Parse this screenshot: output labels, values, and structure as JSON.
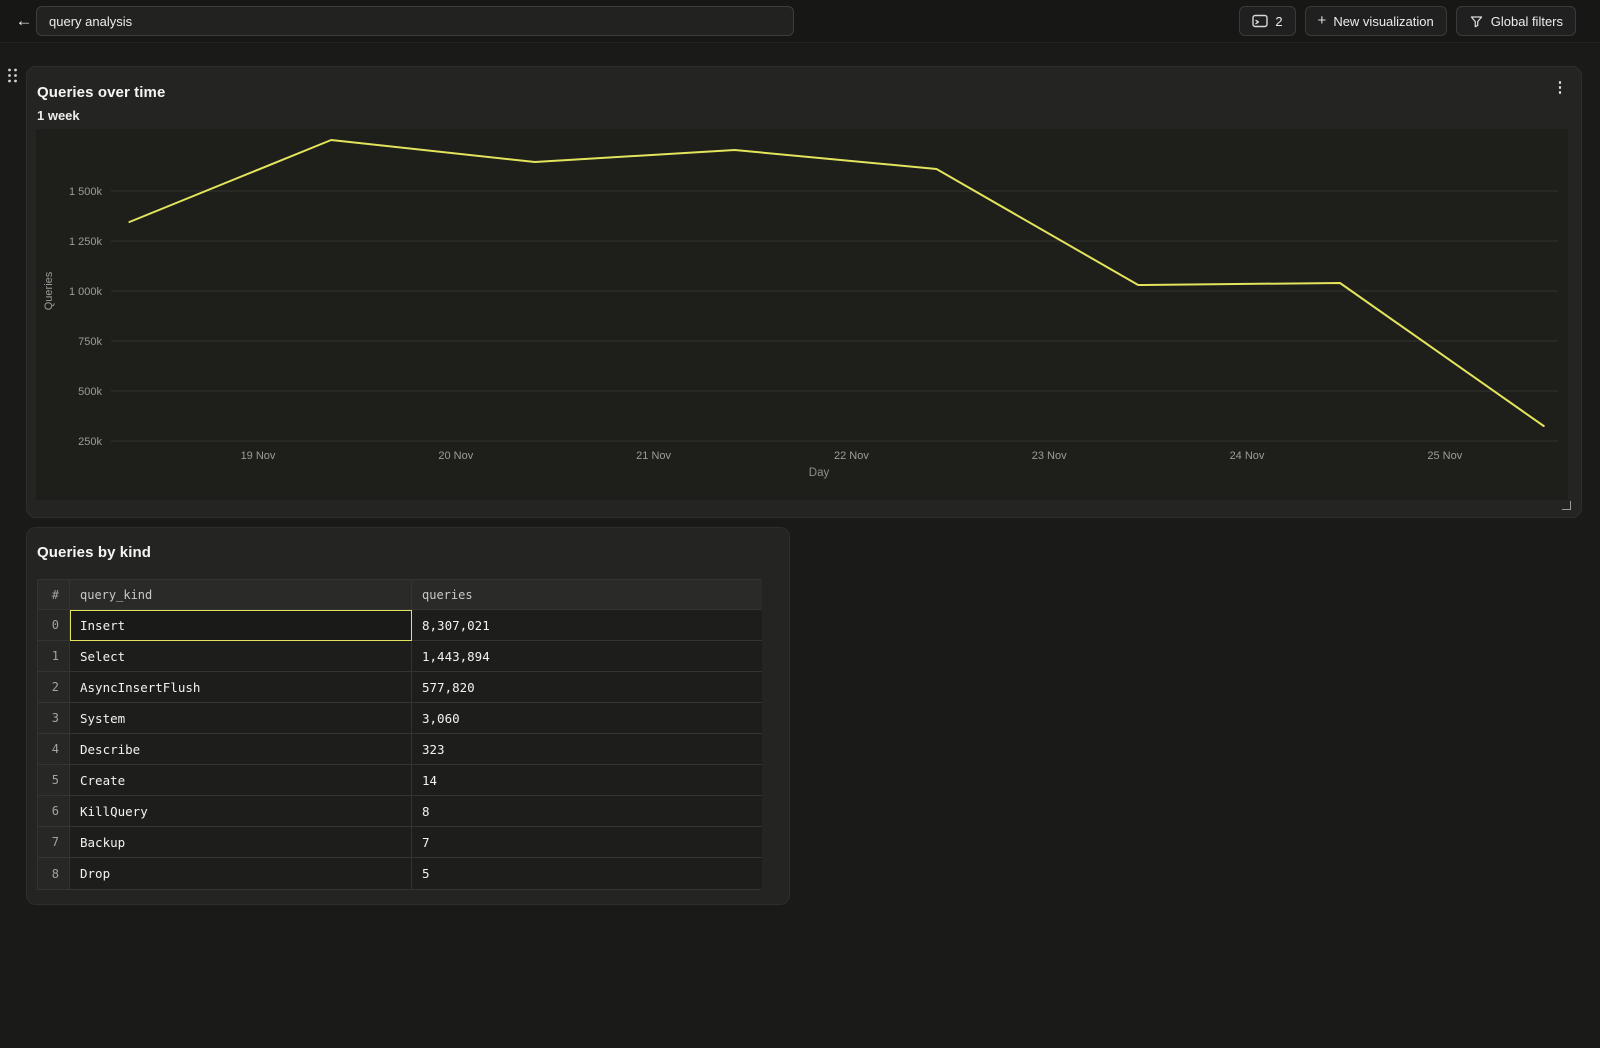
{
  "topbar": {
    "title_value": "query analysis",
    "back_icon": "←",
    "panels_count": "2",
    "panels_icon": "console-window-icon",
    "plus_icon": "+",
    "new_visualization_label": "New visualization",
    "filter_icon": "funnel-icon",
    "global_filters_label": "Global filters"
  },
  "chart_card": {
    "title": "Queries over time",
    "subtitle": "1 week",
    "kebab_icon": "⋮"
  },
  "chart_data": {
    "type": "line",
    "title": "Queries over time",
    "xlabel": "Day",
    "ylabel": "Queries",
    "grid": true,
    "legend": false,
    "line_color": "#e3e45c",
    "ylim": [
      0,
      1810000
    ],
    "y_tick_values": [
      1500000,
      1250000,
      1000000,
      750000,
      500000,
      250000
    ],
    "y_tick_labels": [
      "1 500k",
      "1 250k",
      "1 000k",
      "750k",
      "500k",
      "250k"
    ],
    "x_tick_days": [
      19,
      20,
      21,
      22,
      23,
      24,
      25
    ],
    "x_tick_labels": [
      "19 Nov",
      "20 Nov",
      "21 Nov",
      "22 Nov",
      "23 Nov",
      "24 Nov",
      "25 Nov"
    ],
    "series": [
      {
        "name": "Queries",
        "points": [
          {
            "day": 18.35,
            "value": 1345000
          },
          {
            "day": 19.37,
            "value": 1755000
          },
          {
            "day": 20.4,
            "value": 1645000
          },
          {
            "day": 21.41,
            "value": 1705000
          },
          {
            "day": 22.43,
            "value": 1610000
          },
          {
            "day": 23.45,
            "value": 1030000
          },
          {
            "day": 24.47,
            "value": 1040000
          },
          {
            "day": 25.5,
            "value": 325000
          }
        ]
      }
    ]
  },
  "table_card": {
    "title": "Queries by kind",
    "columns": [
      "#",
      "query_kind",
      "queries"
    ],
    "rows": [
      {
        "index": "0",
        "query_kind": "Insert",
        "queries": "8,307,021",
        "selected": true
      },
      {
        "index": "1",
        "query_kind": "Select",
        "queries": "1,443,894",
        "selected": false
      },
      {
        "index": "2",
        "query_kind": "AsyncInsertFlush",
        "queries": "577,820",
        "selected": false
      },
      {
        "index": "3",
        "query_kind": "System",
        "queries": "3,060",
        "selected": false
      },
      {
        "index": "4",
        "query_kind": "Describe",
        "queries": "323",
        "selected": false
      },
      {
        "index": "5",
        "query_kind": "Create",
        "queries": "14",
        "selected": false
      },
      {
        "index": "6",
        "query_kind": "KillQuery",
        "queries": "8",
        "selected": false
      },
      {
        "index": "7",
        "query_kind": "Backup",
        "queries": "7",
        "selected": false
      },
      {
        "index": "8",
        "query_kind": "Drop",
        "queries": "5",
        "selected": false
      }
    ]
  },
  "colors": {
    "accent_yellow": "#e3e45c",
    "page_background": "#1a1a19",
    "card_background": "#242423"
  }
}
